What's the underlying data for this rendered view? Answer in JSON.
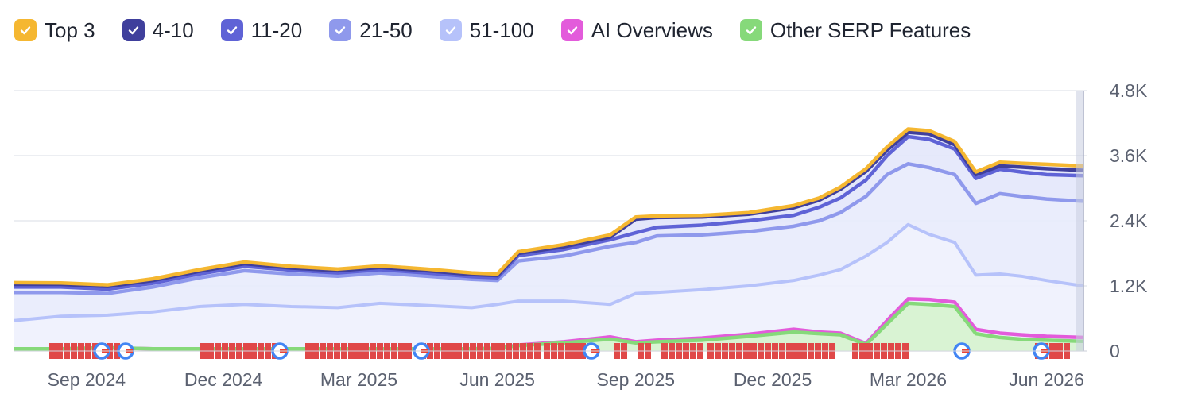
{
  "legend": [
    {
      "label": "Top 3",
      "color": "#f5b731"
    },
    {
      "label": "4-10",
      "color": "#3f3f9c"
    },
    {
      "label": "11-20",
      "color": "#5f63d6"
    },
    {
      "label": "21-50",
      "color": "#8f99ec"
    },
    {
      "label": "51-100",
      "color": "#b6c2fa"
    },
    {
      "label": "AI Overviews",
      "color": "#e35bdb"
    },
    {
      "label": "Other SERP Features",
      "color": "#86d97a"
    }
  ],
  "chart_data": {
    "type": "area",
    "stacked": true,
    "title": "",
    "xlabel": "",
    "ylabel": "",
    "ylim": [
      0,
      4800
    ],
    "y_ticks": [
      "4.8K",
      "3.6K",
      "2.4K",
      "1.2K",
      "0"
    ],
    "y_tick_values": [
      4800,
      3600,
      2400,
      1200,
      0
    ],
    "x_ticks": [
      "Sep 2024",
      "Dec 2024",
      "Mar 2025",
      "Jun 2025",
      "Sep 2025",
      "Dec 2025",
      "Mar 2026",
      "Jun 2026"
    ],
    "x_range": [
      "2024-07-15",
      "2026-06-25"
    ],
    "grid": true,
    "legend_position": "top",
    "x": [
      "2024-07-15",
      "2024-08-15",
      "2024-09-15",
      "2024-10-15",
      "2024-11-15",
      "2024-12-15",
      "2025-01-15",
      "2025-02-15",
      "2025-03-15",
      "2025-04-15",
      "2025-05-15",
      "2025-06-01",
      "2025-06-15",
      "2025-07-15",
      "2025-08-15",
      "2025-09-01",
      "2025-09-15",
      "2025-10-15",
      "2025-11-15",
      "2025-12-15",
      "2026-01-01",
      "2026-01-15",
      "2026-02-01",
      "2026-02-15",
      "2026-03-01",
      "2026-03-15",
      "2026-04-01",
      "2026-04-15",
      "2026-05-01",
      "2026-05-15",
      "2026-06-01",
      "2026-06-25"
    ],
    "series": [
      {
        "name": "51-100",
        "color": "#b6c2fa",
        "cumulative": [
          560,
          640,
          660,
          720,
          820,
          860,
          820,
          800,
          880,
          840,
          800,
          860,
          920,
          920,
          860,
          1060,
          1080,
          1130,
          1200,
          1300,
          1400,
          1500,
          1750,
          2000,
          2330,
          2150,
          2000,
          1400,
          1420,
          1380,
          1300,
          1200
        ]
      },
      {
        "name": "21-50",
        "color": "#8f99ec",
        "cumulative": [
          1080,
          1080,
          1060,
          1180,
          1350,
          1480,
          1420,
          1380,
          1440,
          1380,
          1320,
          1300,
          1660,
          1750,
          1930,
          2000,
          2120,
          2140,
          2200,
          2300,
          2400,
          2550,
          2850,
          3250,
          3450,
          3380,
          3250,
          2720,
          2900,
          2850,
          2800,
          2760
        ]
      },
      {
        "name": "11-20",
        "color": "#5f63d6",
        "cumulative": [
          1180,
          1180,
          1140,
          1250,
          1420,
          1560,
          1490,
          1440,
          1500,
          1440,
          1370,
          1350,
          1760,
          1870,
          2050,
          2180,
          2280,
          2320,
          2400,
          2500,
          2650,
          2820,
          3150,
          3600,
          3950,
          3900,
          3720,
          3180,
          3350,
          3300,
          3250,
          3230
        ]
      },
      {
        "name": "4-10",
        "color": "#3f3f9c",
        "cumulative": [
          1230,
          1230,
          1190,
          1300,
          1470,
          1610,
          1530,
          1480,
          1540,
          1480,
          1410,
          1390,
          1800,
          1920,
          2100,
          2430,
          2460,
          2470,
          2520,
          2640,
          2780,
          2980,
          3310,
          3700,
          4030,
          4000,
          3800,
          3250,
          3410,
          3390,
          3360,
          3330
        ]
      },
      {
        "name": "Top 3",
        "color": "#f5b731",
        "cumulative": [
          1260,
          1255,
          1220,
          1330,
          1500,
          1640,
          1560,
          1510,
          1570,
          1510,
          1440,
          1420,
          1830,
          1960,
          2140,
          2470,
          2490,
          2500,
          2550,
          2680,
          2820,
          3020,
          3360,
          3760,
          4090,
          4060,
          3860,
          3300,
          3480,
          3460,
          3440,
          3410
        ]
      }
    ],
    "serp_features": [
      {
        "name": "Other SERP Features",
        "color": "#86d97a",
        "values": [
          40,
          40,
          60,
          40,
          40,
          40,
          40,
          40,
          40,
          40,
          40,
          50,
          100,
          150,
          220,
          150,
          170,
          200,
          270,
          350,
          320,
          300,
          120,
          500,
          880,
          860,
          820,
          320,
          250,
          220,
          200,
          180
        ]
      },
      {
        "name": "AI Overviews",
        "color": "#e35bdb",
        "values": [
          40,
          40,
          60,
          40,
          40,
          40,
          40,
          40,
          40,
          40,
          40,
          50,
          110,
          170,
          260,
          170,
          200,
          240,
          310,
          400,
          350,
          330,
          140,
          560,
          960,
          950,
          900,
          400,
          330,
          300,
          270,
          250
        ]
      }
    ]
  }
}
